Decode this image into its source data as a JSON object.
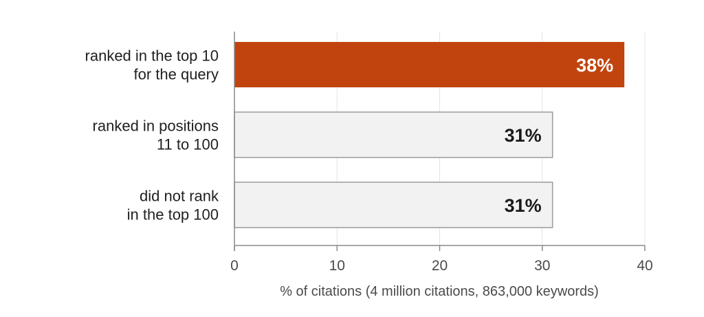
{
  "chart_data": {
    "type": "bar",
    "orientation": "horizontal",
    "categories": [
      [
        "ranked in the top 10",
        "for the query"
      ],
      [
        "ranked in positions",
        "11 to 100"
      ],
      [
        "did not rank",
        "in the top 100"
      ]
    ],
    "values": [
      38,
      31,
      31
    ],
    "data_labels": [
      "38%",
      "31%",
      "31%"
    ],
    "xlabel": "% of citations (4 million citations, 863,000 keywords)",
    "ylabel": "",
    "title": "",
    "xlim": [
      0,
      40
    ],
    "xticks": [
      0,
      10,
      20,
      30,
      40
    ],
    "grid": "vertical",
    "legend": "none",
    "colors": {
      "highlight": "#c1440e",
      "default": "#f2f2f2",
      "bar_stroke_default": "#9a9a9a",
      "gridline": "#e4e4e4",
      "axis": "#8a8a8a",
      "label_on_highlight": "#ffffff",
      "label_on_default": "#1a1a1a"
    },
    "highlight_index": 0
  }
}
